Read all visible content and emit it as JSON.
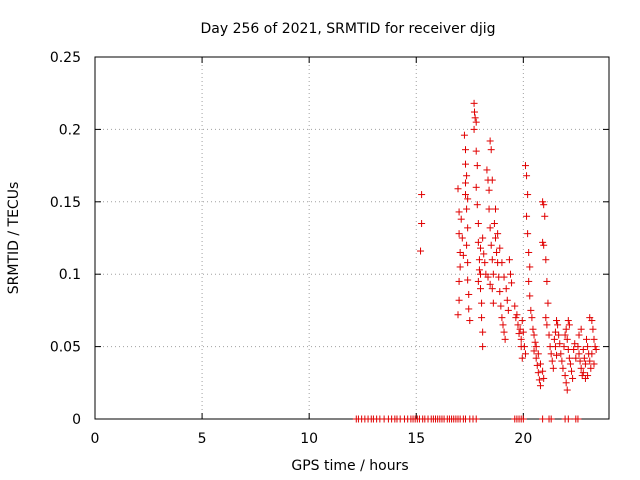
{
  "chart_data": {
    "type": "scatter",
    "title": "Day 256 of 2021, SRMTID for receiver djig",
    "xlabel": "GPS time / hours",
    "ylabel": "SRMTID / TECUs",
    "xlim": [
      0,
      24
    ],
    "ylim": [
      0,
      0.25
    ],
    "xticks": [
      "0",
      "5",
      "10",
      "15",
      "20"
    ],
    "yticks": [
      "0",
      "0.05",
      "0.1",
      "0.15",
      "0.2",
      "0.25"
    ],
    "grid": true,
    "marker": "plus",
    "color": "#e00000",
    "series": [
      {
        "points": [
          [
            12.2,
            0
          ],
          [
            12.3,
            0
          ],
          [
            12.45,
            0
          ],
          [
            12.6,
            0
          ],
          [
            12.75,
            0
          ],
          [
            12.9,
            0
          ],
          [
            13.0,
            0
          ],
          [
            13.15,
            0
          ],
          [
            13.3,
            0
          ],
          [
            13.5,
            0
          ],
          [
            13.7,
            0
          ],
          [
            13.85,
            0
          ],
          [
            14.0,
            0
          ],
          [
            14.1,
            0
          ],
          [
            14.25,
            0
          ],
          [
            14.45,
            0
          ],
          [
            14.6,
            0
          ],
          [
            14.75,
            0
          ],
          [
            14.85,
            0
          ],
          [
            14.95,
            0
          ],
          [
            15.05,
            0
          ],
          [
            15.15,
            0
          ],
          [
            15.3,
            0
          ],
          [
            15.4,
            0
          ],
          [
            15.55,
            0
          ],
          [
            15.7,
            0
          ],
          [
            15.8,
            0
          ],
          [
            15.9,
            0
          ],
          [
            16.0,
            0
          ],
          [
            16.1,
            0
          ],
          [
            16.2,
            0
          ],
          [
            16.3,
            0
          ],
          [
            16.45,
            0
          ],
          [
            16.55,
            0
          ],
          [
            16.65,
            0
          ],
          [
            16.75,
            0
          ],
          [
            16.85,
            0
          ],
          [
            16.95,
            0
          ],
          [
            17.05,
            0
          ],
          [
            17.2,
            0
          ],
          [
            17.3,
            0
          ],
          [
            17.5,
            0
          ],
          [
            17.65,
            0
          ],
          [
            17.8,
            0
          ],
          [
            19.6,
            0
          ],
          [
            19.7,
            0
          ],
          [
            19.8,
            0
          ],
          [
            19.9,
            0
          ],
          [
            20.0,
            0
          ],
          [
            20.9,
            0
          ],
          [
            21.2,
            0
          ],
          [
            21.3,
            0
          ],
          [
            21.95,
            0
          ],
          [
            22.1,
            0
          ],
          [
            22.45,
            0
          ],
          [
            22.55,
            0
          ],
          [
            15.25,
            0.155
          ],
          [
            15.25,
            0.135
          ],
          [
            15.2,
            0.116
          ],
          [
            16.95,
            0.159
          ],
          [
            17.0,
            0.143
          ],
          [
            17.0,
            0.128
          ],
          [
            17.05,
            0.115
          ],
          [
            17.05,
            0.105
          ],
          [
            17.0,
            0.095
          ],
          [
            17.0,
            0.082
          ],
          [
            16.95,
            0.072
          ],
          [
            17.1,
            0.138
          ],
          [
            17.15,
            0.125
          ],
          [
            17.2,
            0.113
          ],
          [
            17.25,
            0.196
          ],
          [
            17.3,
            0.186
          ],
          [
            17.3,
            0.176
          ],
          [
            17.35,
            0.168
          ],
          [
            17.3,
            0.155
          ],
          [
            17.35,
            0.145
          ],
          [
            17.4,
            0.132
          ],
          [
            17.35,
            0.12
          ],
          [
            17.4,
            0.108
          ],
          [
            17.4,
            0.096
          ],
          [
            17.45,
            0.086
          ],
          [
            17.45,
            0.076
          ],
          [
            17.5,
            0.068
          ],
          [
            17.3,
            0.163
          ],
          [
            17.4,
            0.152
          ],
          [
            17.7,
            0.218
          ],
          [
            17.72,
            0.212
          ],
          [
            17.75,
            0.208
          ],
          [
            17.7,
            0.2
          ],
          [
            17.8,
            0.205
          ],
          [
            17.8,
            0.185
          ],
          [
            17.85,
            0.175
          ],
          [
            17.8,
            0.16
          ],
          [
            17.85,
            0.148
          ],
          [
            17.9,
            0.135
          ],
          [
            17.9,
            0.122
          ],
          [
            17.95,
            0.11
          ],
          [
            18.0,
            0.1
          ],
          [
            18.0,
            0.09
          ],
          [
            18.05,
            0.08
          ],
          [
            18.05,
            0.07
          ],
          [
            18.1,
            0.06
          ],
          [
            18.1,
            0.05
          ],
          [
            17.9,
            0.095
          ],
          [
            17.95,
            0.103
          ],
          [
            18.0,
            0.118
          ],
          [
            18.1,
            0.125
          ],
          [
            18.15,
            0.114
          ],
          [
            18.2,
            0.108
          ],
          [
            18.25,
            0.1
          ],
          [
            18.3,
            0.172
          ],
          [
            18.35,
            0.165
          ],
          [
            18.4,
            0.158
          ],
          [
            18.45,
            0.192
          ],
          [
            18.5,
            0.186
          ],
          [
            18.55,
            0.165
          ],
          [
            18.4,
            0.145
          ],
          [
            18.45,
            0.132
          ],
          [
            18.5,
            0.12
          ],
          [
            18.55,
            0.11
          ],
          [
            18.6,
            0.1
          ],
          [
            18.55,
            0.09
          ],
          [
            18.6,
            0.08
          ],
          [
            18.65,
            0.135
          ],
          [
            18.7,
            0.125
          ],
          [
            18.75,
            0.115
          ],
          [
            18.8,
            0.108
          ],
          [
            18.85,
            0.098
          ],
          [
            18.9,
            0.088
          ],
          [
            18.95,
            0.078
          ],
          [
            19.0,
            0.07
          ],
          [
            19.05,
            0.065
          ],
          [
            19.1,
            0.06
          ],
          [
            19.15,
            0.055
          ],
          [
            18.35,
            0.098
          ],
          [
            18.45,
            0.093
          ],
          [
            18.7,
            0.145
          ],
          [
            18.8,
            0.128
          ],
          [
            18.9,
            0.118
          ],
          [
            19.0,
            0.108
          ],
          [
            19.1,
            0.098
          ],
          [
            19.2,
            0.09
          ],
          [
            19.25,
            0.082
          ],
          [
            19.3,
            0.075
          ],
          [
            19.35,
            0.11
          ],
          [
            19.4,
            0.1
          ],
          [
            19.45,
            0.094
          ],
          [
            19.6,
            0.078
          ],
          [
            19.65,
            0.07
          ],
          [
            19.7,
            0.072
          ],
          [
            19.75,
            0.065
          ],
          [
            19.8,
            0.059
          ],
          [
            19.85,
            0.062
          ],
          [
            19.9,
            0.055
          ],
          [
            19.95,
            0.068
          ],
          [
            20.0,
            0.06
          ],
          [
            20.05,
            0.05
          ],
          [
            20.1,
            0.045
          ],
          [
            19.9,
            0.05
          ],
          [
            19.95,
            0.042
          ],
          [
            20.1,
            0.175
          ],
          [
            20.15,
            0.168
          ],
          [
            20.2,
            0.155
          ],
          [
            20.15,
            0.14
          ],
          [
            20.2,
            0.128
          ],
          [
            20.25,
            0.115
          ],
          [
            20.3,
            0.105
          ],
          [
            20.25,
            0.095
          ],
          [
            20.3,
            0.085
          ],
          [
            20.35,
            0.075
          ],
          [
            20.4,
            0.07
          ],
          [
            20.45,
            0.062
          ],
          [
            20.5,
            0.058
          ],
          [
            20.55,
            0.053
          ],
          [
            20.5,
            0.047
          ],
          [
            20.6,
            0.042
          ],
          [
            20.65,
            0.037
          ],
          [
            20.7,
            0.032
          ],
          [
            20.75,
            0.027
          ],
          [
            20.8,
            0.023
          ],
          [
            20.6,
            0.05
          ],
          [
            20.7,
            0.045
          ],
          [
            20.8,
            0.038
          ],
          [
            20.9,
            0.033
          ],
          [
            20.95,
            0.028
          ],
          [
            20.9,
            0.15
          ],
          [
            20.95,
            0.148
          ],
          [
            21.0,
            0.14
          ],
          [
            20.9,
            0.122
          ],
          [
            20.95,
            0.12
          ],
          [
            21.05,
            0.11
          ],
          [
            21.1,
            0.095
          ],
          [
            21.15,
            0.08
          ],
          [
            21.05,
            0.07
          ],
          [
            21.1,
            0.065
          ],
          [
            21.2,
            0.058
          ],
          [
            21.25,
            0.05
          ],
          [
            21.3,
            0.045
          ],
          [
            21.35,
            0.04
          ],
          [
            21.4,
            0.035
          ],
          [
            21.45,
            0.055
          ],
          [
            21.5,
            0.06
          ],
          [
            21.55,
            0.068
          ],
          [
            21.6,
            0.065
          ],
          [
            21.65,
            0.058
          ],
          [
            21.7,
            0.052
          ],
          [
            21.75,
            0.045
          ],
          [
            21.8,
            0.04
          ],
          [
            21.85,
            0.035
          ],
          [
            21.9,
            0.05
          ],
          [
            21.95,
            0.058
          ],
          [
            22.0,
            0.062
          ],
          [
            22.05,
            0.055
          ],
          [
            22.1,
            0.048
          ],
          [
            22.15,
            0.042
          ],
          [
            22.2,
            0.038
          ],
          [
            22.25,
            0.033
          ],
          [
            22.3,
            0.028
          ],
          [
            22.35,
            0.048
          ],
          [
            22.4,
            0.052
          ],
          [
            22.45,
            0.042
          ],
          [
            21.95,
            0.03
          ],
          [
            22.0,
            0.025
          ],
          [
            22.05,
            0.02
          ],
          [
            21.5,
            0.05
          ],
          [
            21.55,
            0.044
          ],
          [
            22.1,
            0.068
          ],
          [
            22.15,
            0.065
          ],
          [
            22.55,
            0.05
          ],
          [
            22.6,
            0.045
          ],
          [
            22.65,
            0.04
          ],
          [
            22.7,
            0.035
          ],
          [
            22.75,
            0.03
          ],
          [
            22.8,
            0.048
          ],
          [
            22.85,
            0.042
          ],
          [
            22.9,
            0.038
          ],
          [
            22.95,
            0.055
          ],
          [
            23.0,
            0.05
          ],
          [
            23.05,
            0.045
          ],
          [
            23.1,
            0.04
          ],
          [
            23.15,
            0.035
          ],
          [
            23.2,
            0.068
          ],
          [
            23.25,
            0.062
          ],
          [
            23.3,
            0.055
          ],
          [
            23.35,
            0.05
          ],
          [
            22.6,
            0.058
          ],
          [
            22.7,
            0.062
          ],
          [
            22.8,
            0.032
          ],
          [
            22.9,
            0.028
          ],
          [
            23.0,
            0.03
          ],
          [
            23.1,
            0.07
          ],
          [
            23.2,
            0.045
          ],
          [
            23.3,
            0.038
          ],
          [
            23.4,
            0.048
          ]
        ]
      }
    ]
  }
}
